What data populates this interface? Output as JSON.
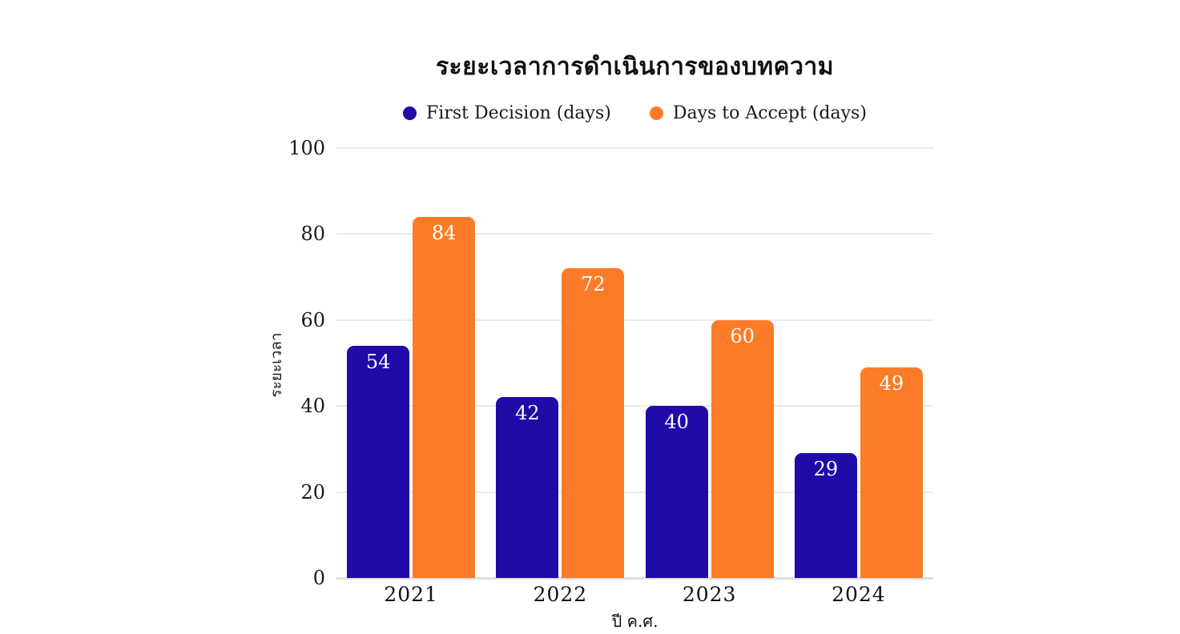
{
  "chart_data": {
    "type": "bar",
    "title": "ระยะเวลาการดำเนินการของบทความ",
    "categories": [
      "2021",
      "2022",
      "2023",
      "2024"
    ],
    "series": [
      {
        "name": "First Decision (days)",
        "key": "first-decision",
        "color": "#1F0BA8",
        "values": [
          54,
          42,
          40,
          29
        ]
      },
      {
        "name": "Days to Accept (days)",
        "key": "days-to-accept",
        "color": "#FC7B28",
        "values": [
          84,
          72,
          60,
          49
        ]
      }
    ],
    "xlabel": "ปี ค.ศ.",
    "ylabel": "ระยะเวลา",
    "ylim": [
      0,
      100
    ],
    "yticks": [
      0,
      20,
      40,
      60,
      80,
      100
    ],
    "grid": true,
    "legend_position": "top",
    "data_labels": true,
    "colors": {
      "background": "#FFFFFF",
      "gridline": "#EBEBEB",
      "baseline": "#DEDEDE",
      "text": "#1A1A1A",
      "data_label": "#FFFFFF"
    }
  }
}
